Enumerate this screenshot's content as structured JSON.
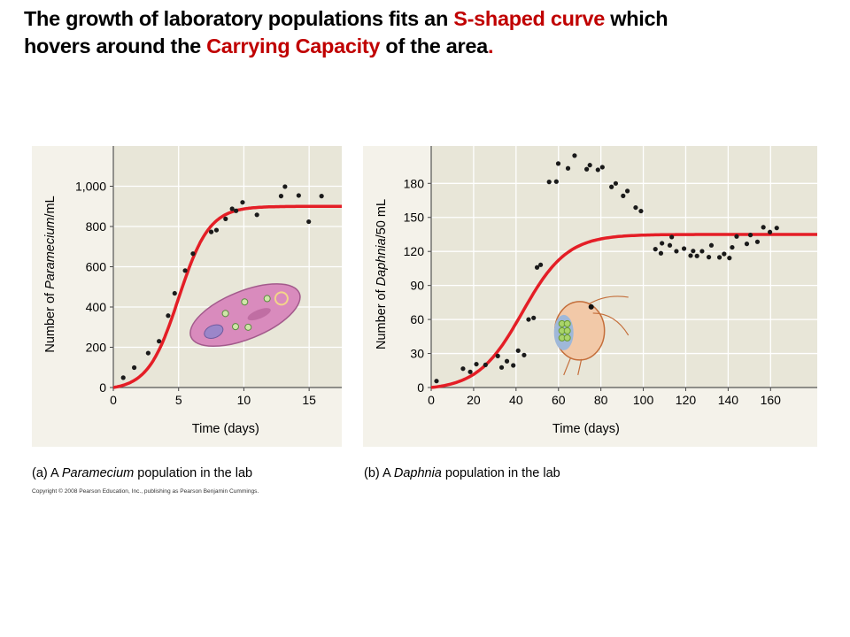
{
  "title": {
    "line1_a": "The growth of laboratory populations fits an ",
    "line1_red": "S-shaped curve",
    "line1_b": " which",
    "line2_a": "hovers around the ",
    "line2_red": "Carrying Capacity",
    "line2_b": " of the area",
    "line2_period": "."
  },
  "colors": {
    "accent_red": "#c00000",
    "curve": "#e41e26",
    "plot_bg": "#e8e6d8",
    "panel_bg": "#f4f2ea",
    "points": "#1a1a1a"
  },
  "captions": {
    "a": {
      "prefix": "(a) A ",
      "italic": "Paramecium",
      "suffix": "  population  in the lab"
    },
    "b": {
      "prefix": "(b) A ",
      "italic": "Daphnia",
      "suffix": "  population  in the lab"
    }
  },
  "copyright": "Copyright © 2008 Pearson Education, Inc., publishing as Pearson Benjamin Cummings.",
  "chart_data": [
    {
      "type": "scatter",
      "title": "",
      "xlabel": "Time (days)",
      "ylabel": {
        "prefix": "Number of ",
        "italic": "Paramecium",
        "suffix": "/mL"
      },
      "xlim": [
        0,
        17.5
      ],
      "ylim": [
        0,
        1200
      ],
      "xticks": [
        0,
        5,
        10,
        15
      ],
      "xtick_labels": [
        "0",
        "5",
        "10",
        "15"
      ],
      "yticks": [
        0,
        200,
        400,
        600,
        800,
        1000
      ],
      "ytick_labels": [
        "0",
        "200",
        "400",
        "600",
        "800",
        "1,000"
      ],
      "grid": true,
      "illustration": "paramecium",
      "points": [
        [
          0.76,
          49
        ],
        [
          1.6,
          99
        ],
        [
          2.67,
          171
        ],
        [
          3.5,
          230
        ],
        [
          4.2,
          357
        ],
        [
          4.7,
          468
        ],
        [
          5.5,
          581
        ],
        [
          6.1,
          665
        ],
        [
          7.5,
          773
        ],
        [
          7.9,
          782
        ],
        [
          8.6,
          838
        ],
        [
          9.1,
          888
        ],
        [
          9.4,
          878
        ],
        [
          9.9,
          920
        ],
        [
          11.0,
          858
        ],
        [
          12.85,
          951
        ],
        [
          13.15,
          998
        ],
        [
          14.2,
          954
        ],
        [
          14.97,
          824
        ],
        [
          15.95,
          951
        ]
      ],
      "curve": {
        "type": "logistic",
        "carrying_capacity": 900
      }
    },
    {
      "type": "scatter",
      "title": "",
      "xlabel": "Time (days)",
      "ylabel": {
        "prefix": "Number of ",
        "italic": "Daphnia",
        "suffix": "/50  mL"
      },
      "xlim": [
        0,
        182
      ],
      "ylim": [
        0,
        213
      ],
      "xticks": [
        0,
        20,
        40,
        60,
        80,
        100,
        120,
        140,
        160
      ],
      "xtick_labels": [
        "0",
        "20",
        "40",
        "60",
        "80",
        "100",
        "120",
        "140",
        "160"
      ],
      "yticks": [
        0,
        30,
        60,
        90,
        120,
        150,
        180
      ],
      "ytick_labels": [
        "0",
        "30",
        "60",
        "90",
        "120",
        "150",
        "180"
      ],
      "grid": true,
      "illustration": "daphnia",
      "points": [
        [
          2.5,
          5.7
        ],
        [
          15,
          16.6
        ],
        [
          18.4,
          13.8
        ],
        [
          21.3,
          20.6
        ],
        [
          25.6,
          20
        ],
        [
          31.4,
          27.8
        ],
        [
          33.2,
          17.7
        ],
        [
          35.7,
          23.2
        ],
        [
          38.7,
          19.5
        ],
        [
          41,
          32.5
        ],
        [
          43.8,
          28.6
        ],
        [
          45.9,
          60
        ],
        [
          48.3,
          61.4
        ],
        [
          49.9,
          105.9
        ],
        [
          51.6,
          108.2
        ],
        [
          55.6,
          181.3
        ],
        [
          59,
          181.6
        ],
        [
          59.9,
          197.5
        ],
        [
          64.5,
          193.3
        ],
        [
          67.6,
          204.5
        ],
        [
          73.3,
          192.5
        ],
        [
          74.8,
          196.1
        ],
        [
          78.6,
          192
        ],
        [
          80.7,
          194.3
        ],
        [
          85,
          176.9
        ],
        [
          87,
          180
        ],
        [
          90.5,
          169
        ],
        [
          92.5,
          173.3
        ],
        [
          96.4,
          158.7
        ],
        [
          98.9,
          155.6
        ],
        [
          105.7,
          122
        ],
        [
          108.3,
          118.4
        ],
        [
          108.8,
          127.2
        ],
        [
          112.5,
          125.4
        ],
        [
          113.4,
          132.7
        ],
        [
          115.6,
          120.2
        ],
        [
          119.2,
          122.5
        ],
        [
          122.3,
          116.3
        ],
        [
          123.5,
          120.4
        ],
        [
          125.3,
          116
        ],
        [
          127.7,
          120.2
        ],
        [
          130.9,
          115
        ],
        [
          132.1,
          125.4
        ],
        [
          135.9,
          114.8
        ],
        [
          138.1,
          117.8
        ],
        [
          140.6,
          114.2
        ],
        [
          141.9,
          123.6
        ],
        [
          144,
          133.2
        ],
        [
          148.8,
          126.7
        ],
        [
          150.5,
          134.5
        ],
        [
          153.8,
          128.5
        ],
        [
          156.6,
          141.3
        ],
        [
          159.7,
          137.1
        ],
        [
          162.9,
          140.7
        ]
      ],
      "curve": {
        "type": "logistic",
        "carrying_capacity": 135
      }
    }
  ]
}
